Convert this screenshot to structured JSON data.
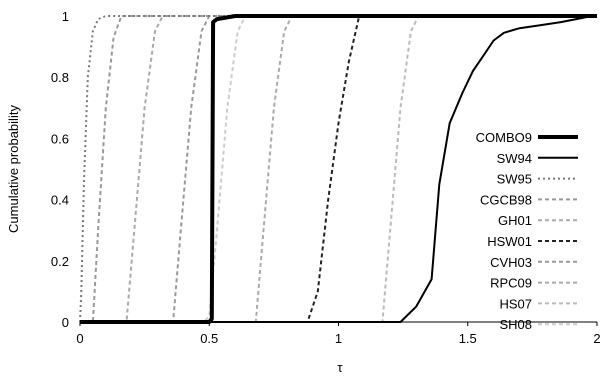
{
  "chart_data": {
    "type": "line",
    "xlabel": "τ",
    "ylabel": "Cumulative probability",
    "xlim": [
      0,
      2
    ],
    "ylim": [
      0,
      1
    ],
    "x_ticks": [
      "0",
      "0.5",
      "1",
      "1.5",
      "2"
    ],
    "y_ticks": [
      "0",
      "0.2",
      "0.4",
      "0.6",
      "0.8",
      "1"
    ],
    "grid": false,
    "legend_position": "right",
    "series": [
      {
        "name": "COMBO9",
        "color": "#000000",
        "style": "solid",
        "points": [
          [
            0,
            0
          ],
          [
            0.5,
            0
          ],
          [
            0.51,
            0.01
          ],
          [
            0.515,
            0.98
          ],
          [
            0.53,
            0.99
          ],
          [
            0.6,
            1
          ],
          [
            2,
            1
          ]
        ]
      },
      {
        "name": "SW94",
        "color": "#000000",
        "style": "solid",
        "points": [
          [
            0,
            0
          ],
          [
            1.24,
            0
          ],
          [
            1.3,
            0.05
          ],
          [
            1.36,
            0.14
          ],
          [
            1.39,
            0.45
          ],
          [
            1.43,
            0.65
          ],
          [
            1.48,
            0.75
          ],
          [
            1.52,
            0.82
          ],
          [
            1.56,
            0.87
          ],
          [
            1.6,
            0.92
          ],
          [
            1.64,
            0.945
          ],
          [
            1.7,
            0.96
          ],
          [
            1.78,
            0.97
          ],
          [
            1.86,
            0.98
          ],
          [
            1.92,
            0.99
          ],
          [
            1.98,
            1
          ],
          [
            2,
            1
          ]
        ]
      },
      {
        "name": "SW95",
        "color": "#777777",
        "style": "dotted",
        "points": [
          [
            0,
            0
          ],
          [
            0.005,
            0.1
          ],
          [
            0.015,
            0.45
          ],
          [
            0.03,
            0.8
          ],
          [
            0.05,
            0.95
          ],
          [
            0.07,
            0.99
          ],
          [
            0.1,
            1
          ],
          [
            2,
            1
          ]
        ]
      },
      {
        "name": "CGCB98",
        "color": "#999999",
        "style": "dashed",
        "points": [
          [
            0,
            0
          ],
          [
            0.05,
            0
          ],
          [
            0.07,
            0.3
          ],
          [
            0.1,
            0.7
          ],
          [
            0.13,
            0.93
          ],
          [
            0.16,
            1
          ],
          [
            2,
            1
          ]
        ]
      },
      {
        "name": "GH01",
        "color": "#aaaaaa",
        "style": "dashed",
        "points": [
          [
            0,
            0
          ],
          [
            0.18,
            0
          ],
          [
            0.21,
            0.3
          ],
          [
            0.25,
            0.7
          ],
          [
            0.29,
            0.95
          ],
          [
            0.32,
            1
          ],
          [
            2,
            1
          ]
        ]
      },
      {
        "name": "HSW01",
        "color": "#222222",
        "style": "dashed",
        "points": [
          [
            0,
            0
          ],
          [
            0.88,
            0
          ],
          [
            0.92,
            0.1
          ],
          [
            0.96,
            0.4
          ],
          [
            1.0,
            0.65
          ],
          [
            1.04,
            0.85
          ],
          [
            1.08,
            1
          ],
          [
            2,
            1
          ]
        ]
      },
      {
        "name": "CVH03",
        "color": "#999999",
        "style": "dashed",
        "points": [
          [
            0,
            0
          ],
          [
            0.36,
            0
          ],
          [
            0.39,
            0.3
          ],
          [
            0.43,
            0.7
          ],
          [
            0.47,
            0.95
          ],
          [
            0.5,
            1
          ],
          [
            2,
            1
          ]
        ]
      },
      {
        "name": "RPC09",
        "color": "#aaaaaa",
        "style": "dashed",
        "points": [
          [
            0,
            0
          ],
          [
            0.68,
            0
          ],
          [
            0.71,
            0.3
          ],
          [
            0.75,
            0.7
          ],
          [
            0.79,
            0.95
          ],
          [
            0.82,
            1
          ],
          [
            2,
            1
          ]
        ]
      },
      {
        "name": "HS07",
        "color": "#bbbbbb",
        "style": "dashed",
        "points": [
          [
            0,
            0
          ],
          [
            1.17,
            0
          ],
          [
            1.2,
            0.3
          ],
          [
            1.24,
            0.7
          ],
          [
            1.28,
            0.95
          ],
          [
            1.31,
            1
          ],
          [
            2,
            1
          ]
        ]
      },
      {
        "name": "SH08",
        "color": "#cccccc",
        "style": "dashed",
        "points": [
          [
            0,
            0
          ],
          [
            0.48,
            0
          ],
          [
            0.5,
            0.02
          ],
          [
            0.53,
            0.3
          ],
          [
            0.57,
            0.7
          ],
          [
            0.61,
            0.95
          ],
          [
            0.64,
            1
          ],
          [
            2,
            1
          ]
        ]
      }
    ]
  }
}
